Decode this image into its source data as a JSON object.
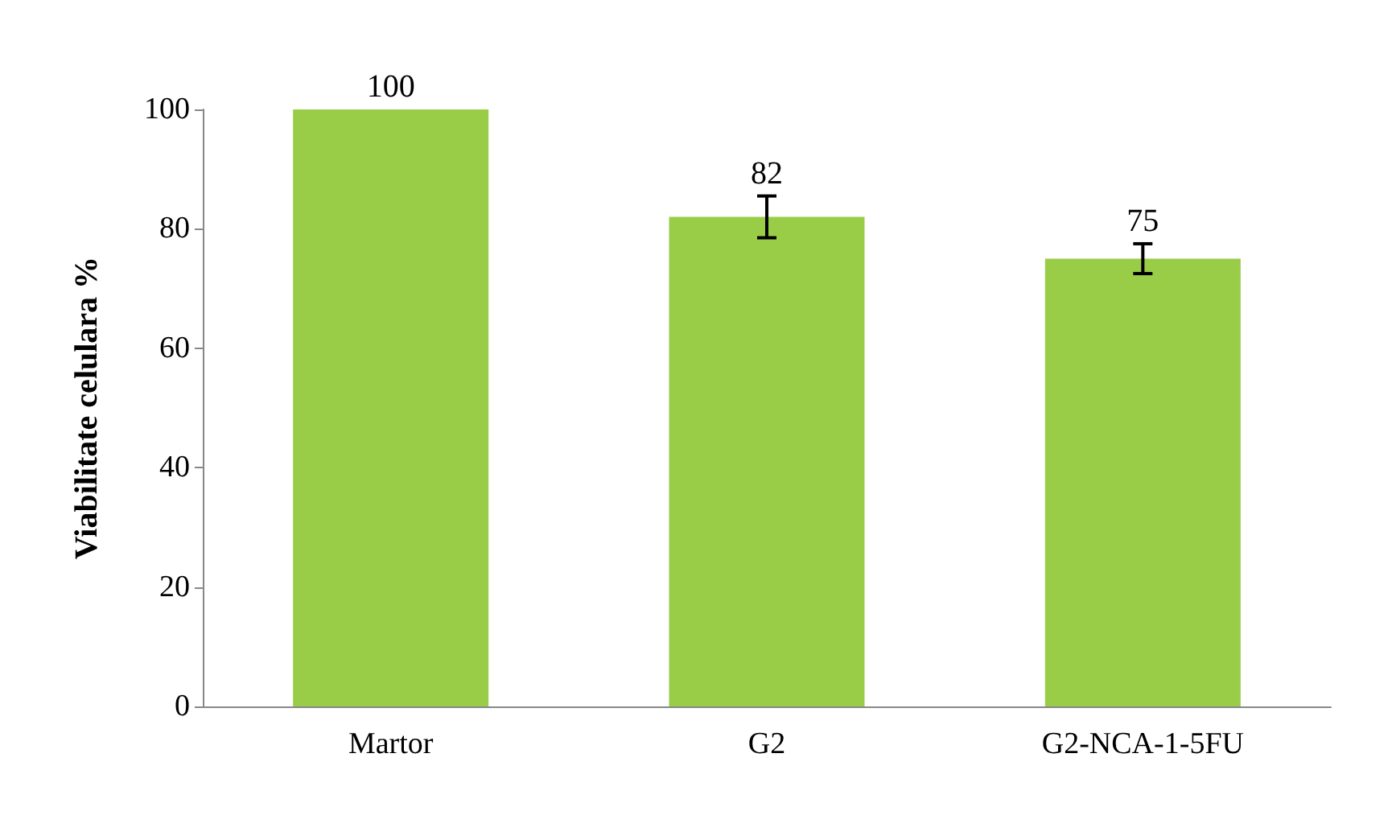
{
  "chart_data": {
    "type": "bar",
    "ylabel": "Viabilitate celulara %",
    "categories": [
      "Martor",
      "G2",
      "G2-NCA-1-5FU"
    ],
    "values": [
      100,
      82,
      75
    ],
    "errors": [
      null,
      3.5,
      2.5
    ],
    "color": "#9acd47",
    "ylim": [
      0,
      100
    ],
    "yticks": [
      0,
      20,
      40,
      60,
      80,
      100
    ],
    "grid": false,
    "data_labels": true
  }
}
